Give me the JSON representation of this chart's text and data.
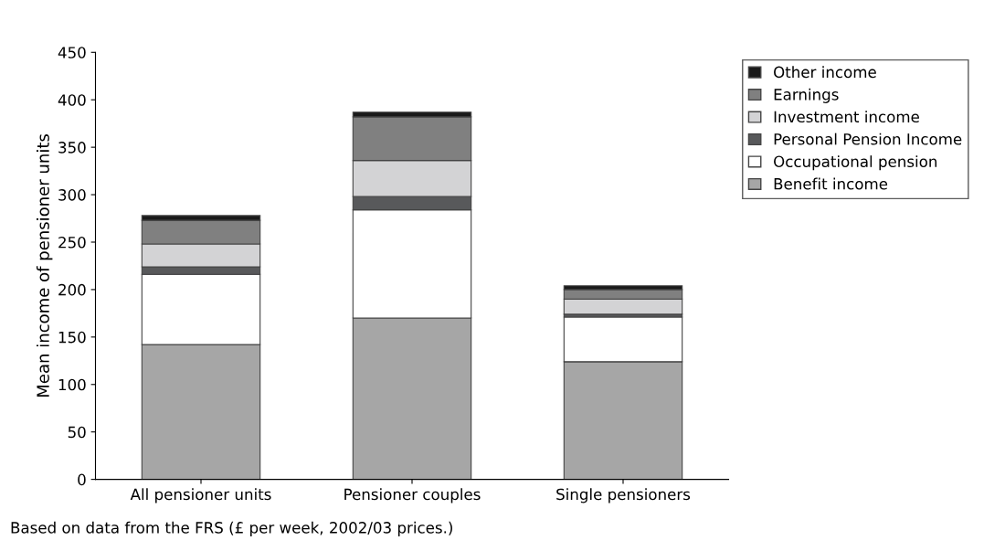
{
  "chart_data": {
    "type": "bar",
    "stacked": true,
    "ylabel": "Mean income of pensioner units",
    "categories": [
      "All pensioner units",
      "Pensioner couples",
      "Single pensioners"
    ],
    "series": [
      {
        "name": "Benefit income",
        "color": "#a6a6a6",
        "values": [
          142,
          170,
          124
        ]
      },
      {
        "name": "Occupational pension",
        "color": "#ffffff",
        "values": [
          74,
          114,
          47
        ]
      },
      {
        "name": "Personal Pension Income",
        "color": "#58595b",
        "values": [
          8,
          14,
          3
        ]
      },
      {
        "name": "Investment income",
        "color": "#d3d3d5",
        "values": [
          24,
          38,
          16
        ]
      },
      {
        "name": "Earnings",
        "color": "#808080",
        "values": [
          25,
          46,
          10
        ]
      },
      {
        "name": "Other income",
        "color": "#1a1a1a",
        "values": [
          5,
          5,
          4
        ]
      }
    ],
    "ylim": [
      0,
      450
    ],
    "yticks": [
      0,
      50,
      100,
      150,
      200,
      250,
      300,
      350,
      400,
      450
    ],
    "grid": false,
    "legend": "top right",
    "annotations": [
      "Based on data from the FRS (£ per week, 2002/03 prices.)"
    ]
  }
}
